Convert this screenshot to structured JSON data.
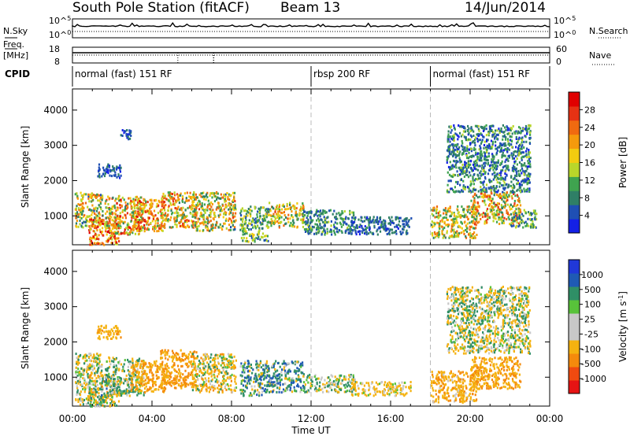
{
  "header": {
    "station": "South Pole Station (fitACF)",
    "beam": "Beam 13",
    "date": "14/Jun/2014"
  },
  "panels": {
    "nsky_label": "N.Sky",
    "nsearch_label": "N.Search",
    "freq_label_top": "Freq.",
    "freq_label_bottom": "[MHz]",
    "nave_label": "Nave",
    "cpid_label": "CPID",
    "nsky_ticks": [
      "10^5",
      "10^0"
    ],
    "nsearch_ticks": [
      "10^5",
      "10^0"
    ],
    "freq_ticks": [
      "18",
      "8"
    ],
    "nave_ticks": [
      "60",
      "0"
    ]
  },
  "cpid_segments": [
    {
      "label": "normal (fast) 151 RF",
      "start_h": 0
    },
    {
      "label": "rbsp 200 RF",
      "start_h": 12
    },
    {
      "label": "normal (fast) 151 RF",
      "start_h": 18
    }
  ],
  "colors": {
    "power_scale": [
      "#1420e6",
      "#1f4fb4",
      "#2f7f66",
      "#3fa34f",
      "#b9d62a",
      "#f2cc10",
      "#f59a0c",
      "#f06a10",
      "#e63214",
      "#e00000"
    ],
    "velocity_scale": [
      "#e61414",
      "#f04a10",
      "#f58a0c",
      "#f5b210",
      "#c8c8c8",
      "#c8c8c8",
      "#58c23a",
      "#2f8f66",
      "#1f5ab4",
      "#2038d8"
    ]
  },
  "chart_data": [
    {
      "type": "heatmap",
      "title": "Power",
      "ylabel": "Slant Range [km]",
      "xlabel": "",
      "x_range_h": [
        0,
        24
      ],
      "ylim": [
        180,
        4600
      ],
      "y_ticks": [
        1000,
        2000,
        3000,
        4000
      ],
      "x_tick_labels": [
        "00:00",
        "04:00",
        "08:00",
        "12:00",
        "16:00",
        "20:00",
        "00:00"
      ],
      "colorbar": {
        "label": "Power [dB]",
        "ticks": [
          "4",
          "8",
          "12",
          "16",
          "20",
          "24",
          "28"
        ],
        "min": 0,
        "max": 32
      },
      "scatter_regions": [
        {
          "h": [
            0.1,
            1.5
          ],
          "r": [
            700,
            1700
          ],
          "v": [
            6,
            26
          ]
        },
        {
          "h": [
            0.8,
            2.3
          ],
          "r": [
            200,
            1000
          ],
          "v": [
            14,
            32
          ]
        },
        {
          "h": [
            1.6,
            3.6
          ],
          "r": [
            500,
            1600
          ],
          "v": [
            8,
            30
          ]
        },
        {
          "h": [
            2.9,
            4.6
          ],
          "r": [
            600,
            1500
          ],
          "v": [
            12,
            30
          ]
        },
        {
          "h": [
            4.4,
            6.2
          ],
          "r": [
            700,
            1700
          ],
          "v": [
            8,
            28
          ]
        },
        {
          "h": [
            6.0,
            8.2
          ],
          "r": [
            600,
            1700
          ],
          "v": [
            6,
            26
          ]
        },
        {
          "h": [
            8.4,
            9.8
          ],
          "r": [
            300,
            1300
          ],
          "v": [
            4,
            18
          ]
        },
        {
          "h": [
            9.8,
            11.6
          ],
          "r": [
            700,
            1400
          ],
          "v": [
            8,
            26
          ]
        },
        {
          "h": [
            11.6,
            14.2
          ],
          "r": [
            500,
            1200
          ],
          "v": [
            3,
            14
          ]
        },
        {
          "h": [
            14.0,
            17.0
          ],
          "r": [
            500,
            1000
          ],
          "v": [
            2,
            10
          ]
        },
        {
          "h": [
            18.0,
            20.3
          ],
          "r": [
            400,
            1300
          ],
          "v": [
            8,
            26
          ]
        },
        {
          "h": [
            20.0,
            22.5
          ],
          "r": [
            800,
            1700
          ],
          "v": [
            8,
            28
          ]
        },
        {
          "h": [
            22.0,
            23.3
          ],
          "r": [
            700,
            1200
          ],
          "v": [
            4,
            16
          ]
        },
        {
          "h": [
            1.2,
            2.4
          ],
          "r": [
            2100,
            2500
          ],
          "v": [
            2,
            8
          ]
        },
        {
          "h": [
            2.3,
            2.9
          ],
          "r": [
            3200,
            3500
          ],
          "v": [
            2,
            8
          ]
        },
        {
          "h": [
            18.8,
            23.0
          ],
          "r": [
            1700,
            3600
          ],
          "v": [
            2,
            14
          ]
        }
      ]
    },
    {
      "type": "heatmap",
      "title": "Velocity",
      "ylabel": "Slant Range [km]",
      "xlabel": "Time UT",
      "x_range_h": [
        0,
        24
      ],
      "ylim": [
        180,
        4600
      ],
      "y_ticks": [
        1000,
        2000,
        3000,
        4000
      ],
      "x_tick_labels": [
        "00:00",
        "04:00",
        "08:00",
        "12:00",
        "16:00",
        "20:00",
        "00:00"
      ],
      "colorbar": {
        "label": "Velocity [m s^-1]",
        "ticks": [
          "-1000",
          "-500",
          "-100",
          "-25",
          "25",
          "100",
          "500",
          "1000"
        ]
      },
      "scatter_regions": [
        {
          "h": [
            0.1,
            1.5
          ],
          "r": [
            200,
            1700
          ],
          "v": [
            -400,
            300
          ]
        },
        {
          "h": [
            0.8,
            2.3
          ],
          "r": [
            200,
            1100
          ],
          "v": [
            -600,
            600
          ]
        },
        {
          "h": [
            1.6,
            3.6
          ],
          "r": [
            500,
            1600
          ],
          "v": [
            -300,
            400
          ]
        },
        {
          "h": [
            2.9,
            4.6
          ],
          "r": [
            600,
            1500
          ],
          "v": [
            -800,
            -100
          ]
        },
        {
          "h": [
            4.4,
            6.2
          ],
          "r": [
            700,
            1800
          ],
          "v": [
            -900,
            -150
          ]
        },
        {
          "h": [
            6.0,
            8.2
          ],
          "r": [
            600,
            1700
          ],
          "v": [
            -600,
            200
          ]
        },
        {
          "h": [
            8.4,
            9.8
          ],
          "r": [
            500,
            1500
          ],
          "v": [
            -300,
            700
          ]
        },
        {
          "h": [
            9.8,
            11.6
          ],
          "r": [
            600,
            1500
          ],
          "v": [
            -200,
            800
          ]
        },
        {
          "h": [
            11.6,
            14.2
          ],
          "r": [
            600,
            1100
          ],
          "v": [
            -300,
            300
          ]
        },
        {
          "h": [
            14.0,
            17.0
          ],
          "r": [
            500,
            900
          ],
          "v": [
            -500,
            100
          ]
        },
        {
          "h": [
            18.0,
            20.3
          ],
          "r": [
            300,
            1200
          ],
          "v": [
            -700,
            -50
          ]
        },
        {
          "h": [
            20.0,
            22.5
          ],
          "r": [
            700,
            1600
          ],
          "v": [
            -800,
            -100
          ]
        },
        {
          "h": [
            1.2,
            2.4
          ],
          "r": [
            2100,
            2500
          ],
          "v": [
            -600,
            -100
          ]
        },
        {
          "h": [
            18.8,
            23.0
          ],
          "r": [
            1700,
            3600
          ],
          "v": [
            -400,
            300
          ]
        }
      ]
    }
  ]
}
